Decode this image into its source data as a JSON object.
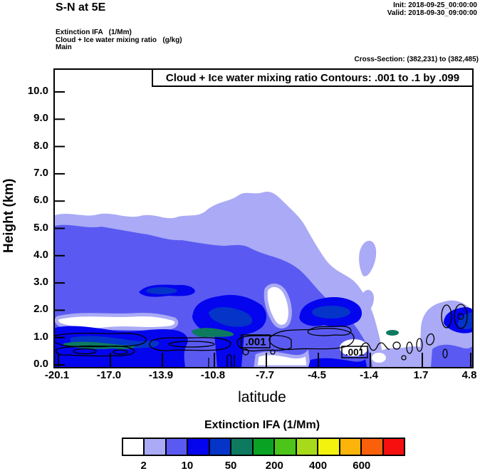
{
  "header": {
    "title": "S-N at 5E",
    "init": "Init: 2018-09-25_00:00:00",
    "valid": "Valid: 2018-09-30_09:00:00"
  },
  "subheader": {
    "line1": "Extinction IFA   (1/Mm)",
    "line2": "Cloud + Ice water mixing ratio   (g/kg)",
    "line3": "Main",
    "cross_section": "Cross-Section: (382,231) to (382,485)"
  },
  "chart_data": {
    "type": "heatmap",
    "subtype": "filled-contour vertical cross-section",
    "title": "Cloud + Ice water mixing ratio Contours: .001 to .1 by .099",
    "xlabel": "latitude",
    "ylabel": "Height (km)",
    "x_ticks": [
      "-20.1",
      "-17.0",
      "-13.9",
      "-10.8",
      "-7.7",
      "-4.5",
      "-1.4",
      "1.7",
      "4.8"
    ],
    "y_ticks": [
      "0.0",
      "1.0",
      "2.0",
      "3.0",
      "4.0",
      "5.0",
      "6.0",
      "7.0",
      "8.0",
      "9.0",
      "10.0"
    ],
    "xlim": [
      -20.1,
      4.8
    ],
    "ylim": [
      0.0,
      10.9
    ],
    "grid": false,
    "contour_levels": [
      0.001,
      0.1
    ],
    "contour_labels": [
      ".001",
      ".001"
    ],
    "colorbar": {
      "title": "Extinction IFA  (1/Mm)",
      "colors": [
        "#ffffff",
        "#aaaaf6",
        "#5a5af2",
        "#0404ee",
        "#0434c8",
        "#0d7a60",
        "#0aa222",
        "#4cc41a",
        "#a8da1c",
        "#f2f20e",
        "#fcb40a",
        "#fa600a",
        "#f50f0f"
      ],
      "tick_labels": [
        "2",
        "10",
        "50",
        "200",
        "400",
        "600"
      ],
      "tick_boundary_indices": [
        1,
        3,
        5,
        7,
        9,
        11
      ]
    },
    "features": [
      "Extinction shading (filled): broad cloud layer with tops 5.5-6 km from lat -20.1 to about -8, sloping down to ~2 km near lat -6",
      "Strongest extinction (>=50 1/Mm, dark blue/teal) in shallow layers below ~1 km between lat -20 and -14 and near lat -12 to -10",
      "Embedded maxima (blue >=10 1/Mm) near 2 km around lat -11 and lat -6 to -4.5, and near 1.5-2 km around lat 3-4.8",
      "Black line contours (.001 and .1 g/kg cloud+ice mixing ratio) confined mostly below ~1.1 km from lat -20.1 to about -1, plus small closed cells near lat 3.5-4 at ~1-2 km"
    ]
  }
}
